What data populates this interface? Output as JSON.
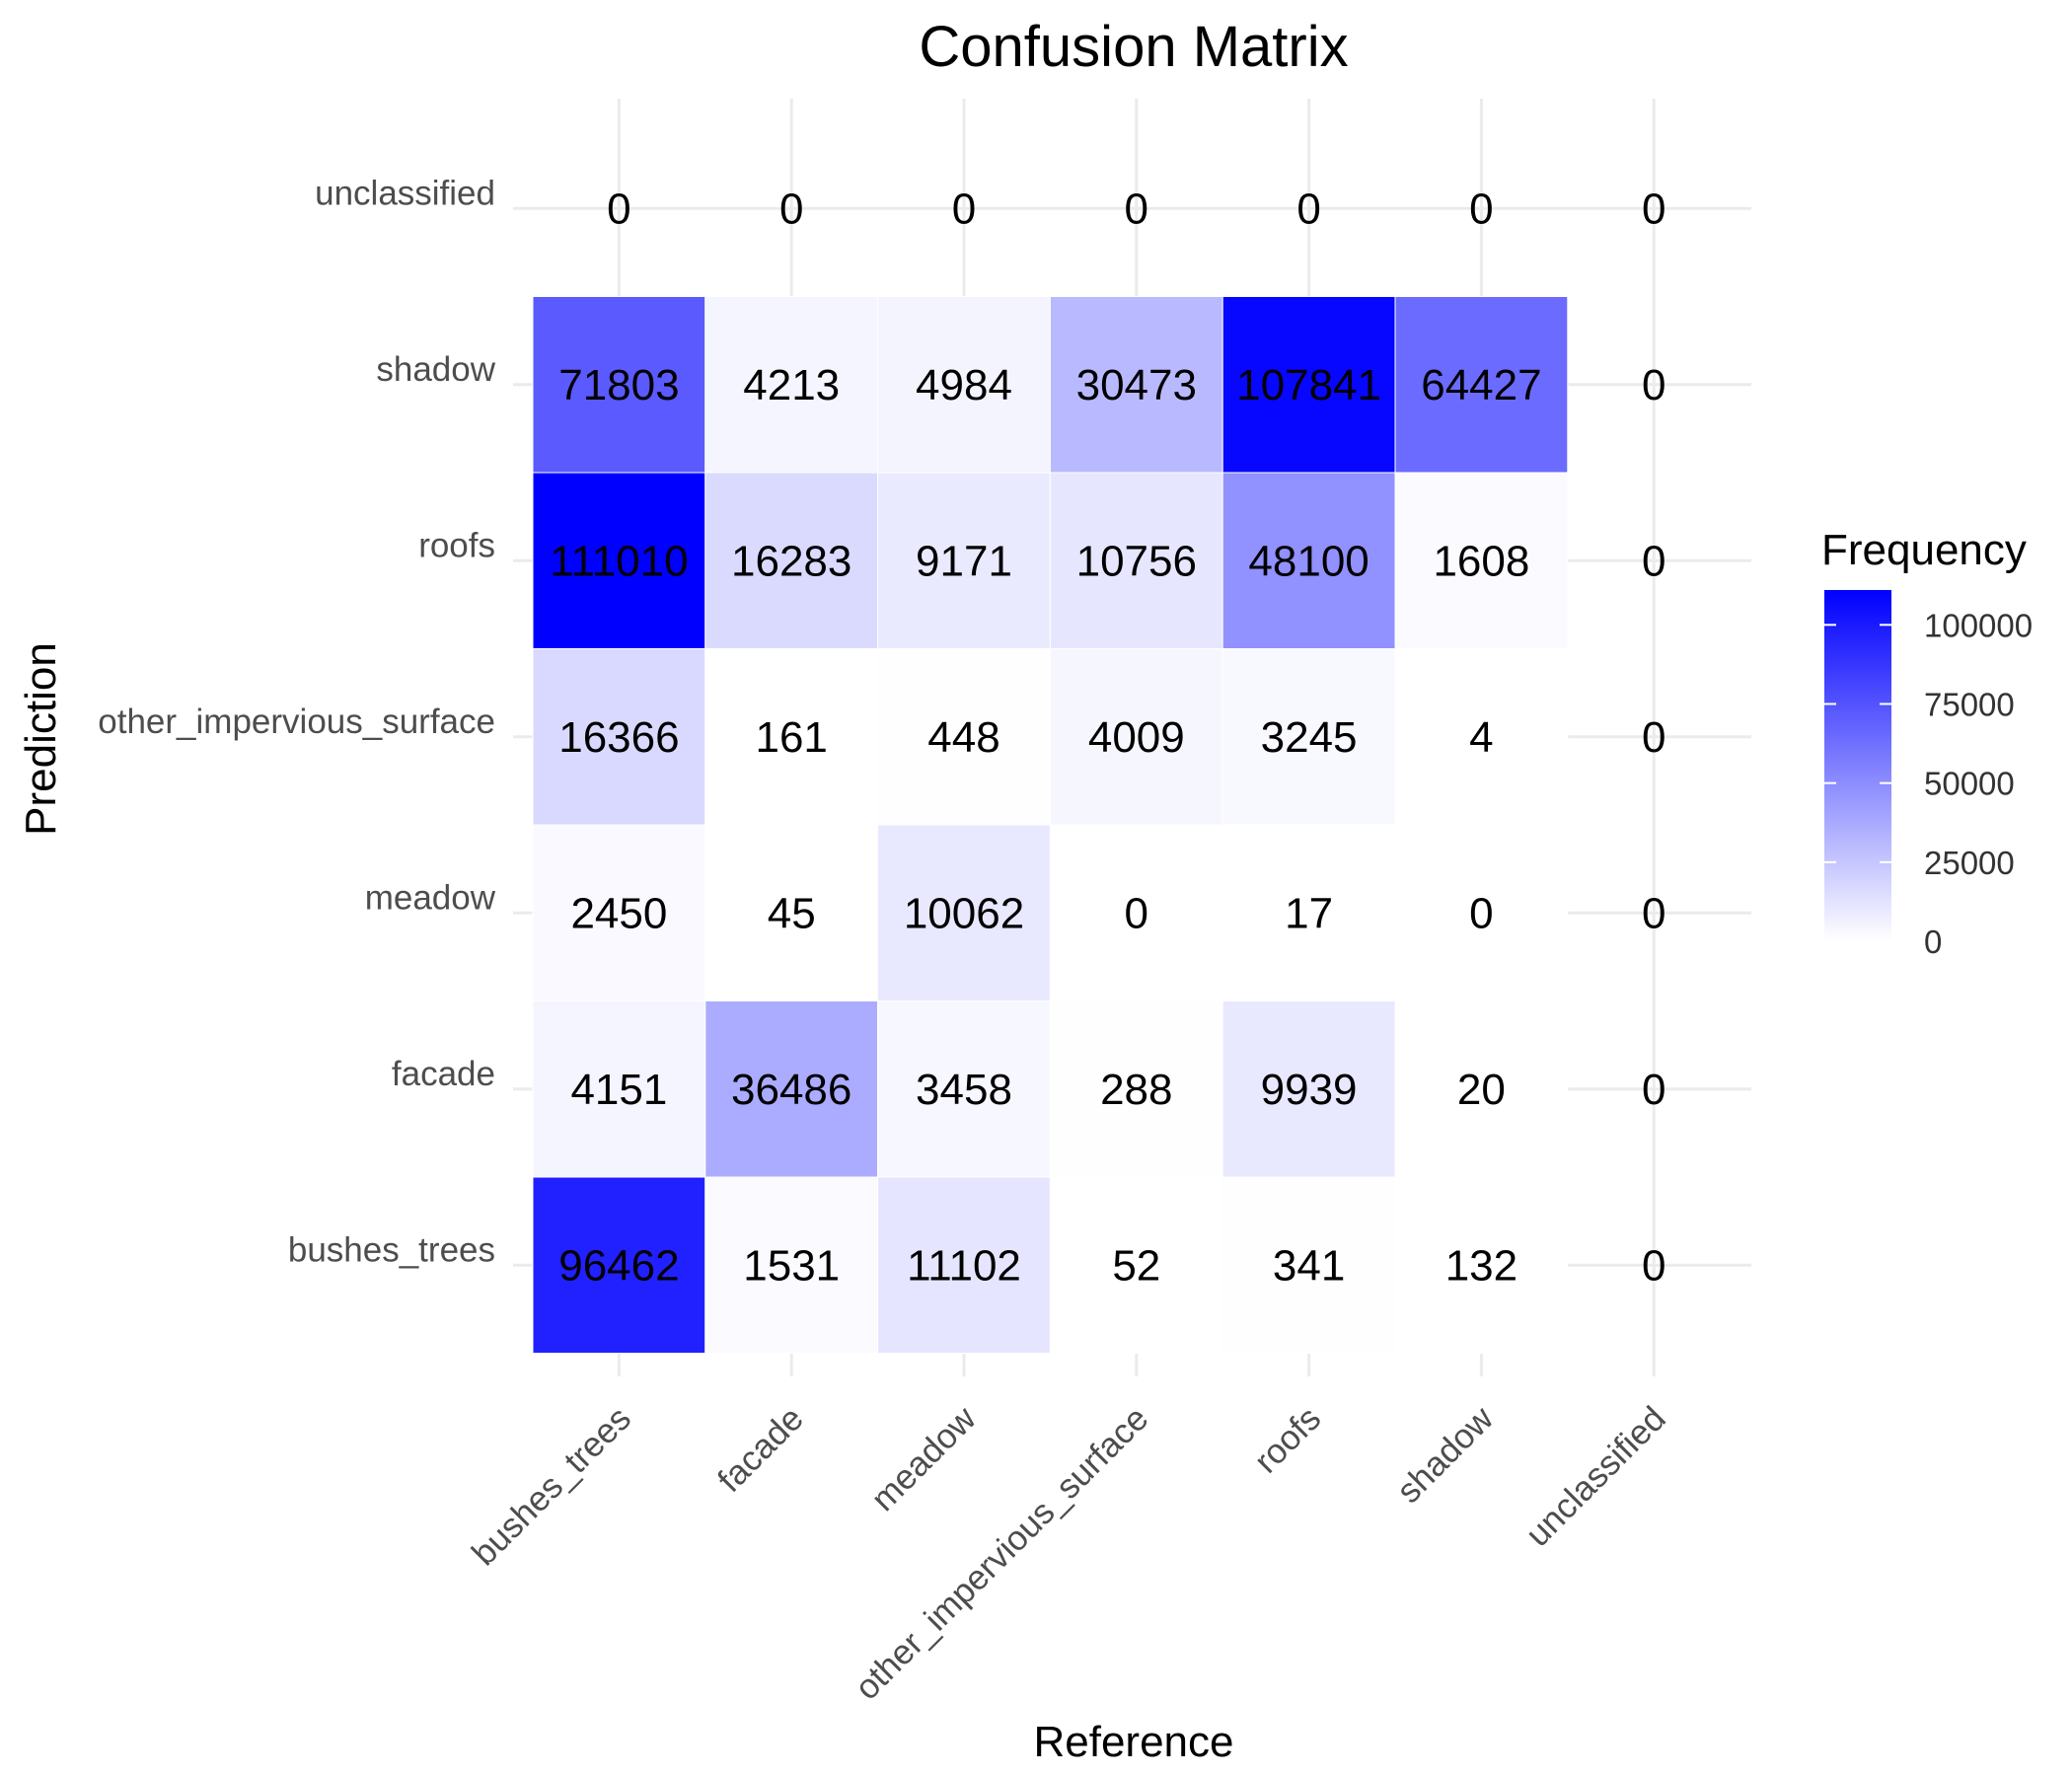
{
  "chart_data": {
    "type": "heatmap",
    "title": "Confusion Matrix",
    "xlabel": "Reference",
    "ylabel": "Prediction",
    "x_categories": [
      "bushes_trees",
      "facade",
      "meadow",
      "other_impervious_surface",
      "roofs",
      "shadow",
      "unclassified"
    ],
    "y_categories": [
      "bushes_trees",
      "facade",
      "meadow",
      "other_impervious_surface",
      "roofs",
      "shadow",
      "unclassified"
    ],
    "values": [
      [
        96462,
        1531,
        11102,
        52,
        341,
        132,
        0
      ],
      [
        4151,
        36486,
        3458,
        288,
        9939,
        20,
        0
      ],
      [
        2450,
        45,
        10062,
        0,
        17,
        0,
        0
      ],
      [
        16366,
        161,
        448,
        4009,
        3245,
        4,
        0
      ],
      [
        111010,
        16283,
        9171,
        10756,
        48100,
        1608,
        0
      ],
      [
        71803,
        4213,
        4984,
        30473,
        107841,
        64427,
        0
      ],
      [
        0,
        0,
        0,
        0,
        0,
        0,
        0
      ]
    ],
    "missing_cells": [
      [
        6,
        0
      ],
      [
        6,
        1
      ],
      [
        6,
        2
      ],
      [
        6,
        3
      ],
      [
        6,
        4
      ],
      [
        6,
        5
      ],
      [
        0,
        6
      ],
      [
        1,
        6
      ],
      [
        2,
        6
      ],
      [
        3,
        6
      ],
      [
        4,
        6
      ],
      [
        5,
        6
      ],
      [
        6,
        6
      ]
    ],
    "legend": {
      "title": "Frequency",
      "ticks": [
        "0",
        "25000",
        "50000",
        "75000",
        "100000"
      ],
      "tick_values": [
        0,
        25000,
        50000,
        75000,
        100000
      ],
      "range": [
        0,
        111010
      ],
      "placement": "right"
    },
    "colors": {
      "low": "#ffffff",
      "high": "#0000ff"
    },
    "grid": true
  }
}
